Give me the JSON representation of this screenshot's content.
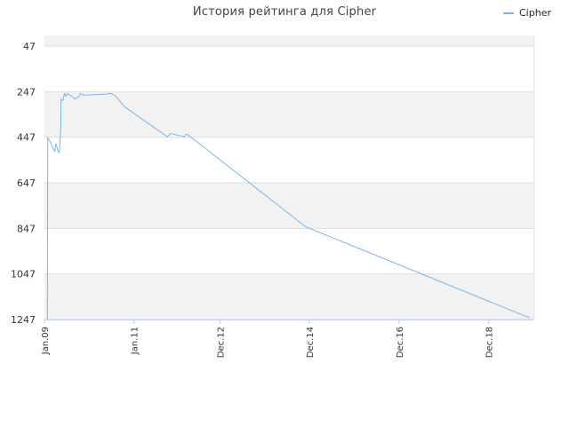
{
  "chart_data": {
    "type": "line",
    "title": "История рейтинга для Cipher",
    "legend": {
      "position": "top-right"
    },
    "colors": {
      "series": "#7cb5ec",
      "band": "#f2f2f2",
      "grid": "#dddddd"
    },
    "y_axis": {
      "reversed": true,
      "ylim": [
        1247,
        0
      ],
      "ticks": [
        47,
        247,
        447,
        647,
        847,
        1047,
        1247
      ],
      "tick_labels": [
        "47",
        "247",
        "447",
        "647",
        "847",
        "1047",
        "1247"
      ]
    },
    "x_axis": {
      "xlim": [
        "2009-01-01",
        "2019-12-01"
      ],
      "ticks": [
        "2009-01-01",
        "2011-01-01",
        "2012-12-01",
        "2014-12-01",
        "2016-12-01",
        "2018-12-01"
      ],
      "tick_labels": [
        "Jan.09",
        "Jan.11",
        "Dec.12",
        "Dec.14",
        "Dec.16",
        "Dec.18"
      ]
    },
    "series": [
      {
        "name": "Cipher",
        "color": "#7cb5ec",
        "points": [
          [
            "2009-01-25",
            1247
          ],
          [
            "2009-01-28",
            447
          ],
          [
            "2009-02-20",
            470
          ],
          [
            "2009-03-25",
            510
          ],
          [
            "2009-04-01",
            485
          ],
          [
            "2009-04-05",
            475
          ],
          [
            "2009-04-20",
            505
          ],
          [
            "2009-05-01",
            515
          ],
          [
            "2009-05-10",
            450
          ],
          [
            "2009-05-14",
            400
          ],
          [
            "2009-05-16",
            280
          ],
          [
            "2009-06-01",
            285
          ],
          [
            "2009-06-12",
            255
          ],
          [
            "2009-06-25",
            268
          ],
          [
            "2009-07-05",
            255
          ],
          [
            "2009-08-15",
            268
          ],
          [
            "2009-09-10",
            280
          ],
          [
            "2009-09-20",
            272
          ],
          [
            "2009-10-10",
            268
          ],
          [
            "2009-10-20",
            255
          ],
          [
            "2009-11-15",
            262
          ],
          [
            "2010-01-01",
            261
          ],
          [
            "2010-05-01",
            258
          ],
          [
            "2010-07-01",
            255
          ],
          [
            "2010-08-01",
            265
          ],
          [
            "2010-10-20",
            315
          ],
          [
            "2011-10-01",
            445
          ],
          [
            "2011-10-25",
            430
          ],
          [
            "2012-02-15",
            445
          ],
          [
            "2012-02-25",
            435
          ],
          [
            "2012-03-10",
            435
          ],
          [
            "2012-03-25",
            440
          ],
          [
            "2014-11-01",
            840
          ],
          [
            "2019-11-01",
            1240
          ]
        ]
      }
    ]
  }
}
